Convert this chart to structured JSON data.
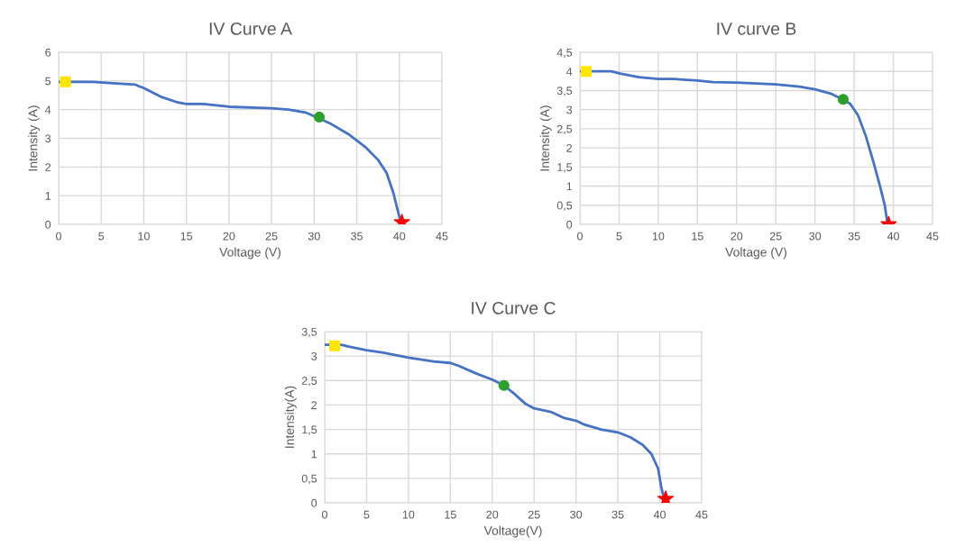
{
  "chart_data": [
    {
      "type": "line",
      "title": "IV Curve A",
      "xlabel": "Voltage (V)",
      "ylabel": "Intensity (A)",
      "xlim": [
        0,
        45
      ],
      "xticks": [
        0,
        5,
        10,
        15,
        20,
        25,
        30,
        35,
        40,
        45
      ],
      "ylim": [
        0,
        6
      ],
      "yticks": [
        0,
        1,
        2,
        3,
        4,
        5,
        6
      ],
      "grid": true,
      "series": [
        {
          "color": "#4472c4",
          "marker": "none",
          "x": [
            0,
            4,
            6,
            9,
            10,
            12,
            14,
            15,
            17,
            20,
            25,
            27,
            29,
            32,
            34,
            36,
            37.5,
            38.5,
            39.3,
            39.8,
            40.1
          ],
          "values": [
            4.97,
            4.97,
            4.93,
            4.87,
            4.75,
            4.45,
            4.25,
            4.2,
            4.2,
            4.1,
            4.05,
            4.0,
            3.9,
            3.5,
            3.15,
            2.7,
            2.25,
            1.8,
            1.1,
            0.5,
            0.15
          ]
        },
        {
          "type": "scatter",
          "color": "#ffe600",
          "marker": "square",
          "x": [
            0.8
          ],
          "values": [
            4.97
          ]
        },
        {
          "type": "scatter",
          "color": "#2ca02c",
          "marker": "circle",
          "x": [
            30.6
          ],
          "values": [
            3.74
          ]
        },
        {
          "type": "scatter",
          "color": "#ff0000",
          "marker": "star",
          "x": [
            40.3
          ],
          "values": [
            0.07
          ]
        }
      ]
    },
    {
      "type": "line",
      "title": "IV curve B",
      "xlabel": "Voltage (V)",
      "ylabel": "Intensity (A)",
      "xlim": [
        0,
        45
      ],
      "xticks": [
        0,
        5,
        10,
        15,
        20,
        25,
        30,
        35,
        40,
        45
      ],
      "ylim": [
        0,
        4.5
      ],
      "yticks": [
        0,
        {
          "value": 0.5,
          "label": "0,5"
        },
        1,
        {
          "value": 1.5,
          "label": "1,5"
        },
        2,
        {
          "value": 2.5,
          "label": "2,5"
        },
        3,
        {
          "value": 3.5,
          "label": "3,5"
        },
        4,
        {
          "value": 4.5,
          "label": "4,5"
        }
      ],
      "grid": true,
      "series": [
        {
          "color": "#4472c4",
          "marker": "none",
          "x": [
            0,
            4,
            5,
            7.5,
            10,
            12,
            15,
            17,
            20,
            25,
            28,
            30,
            32,
            33.5,
            34.5,
            35.5,
            36.5,
            37.5,
            38.3,
            38.9,
            39.2
          ],
          "values": [
            4.0,
            4.0,
            3.95,
            3.85,
            3.8,
            3.8,
            3.76,
            3.72,
            3.71,
            3.66,
            3.6,
            3.53,
            3.42,
            3.27,
            3.15,
            2.85,
            2.3,
            1.6,
            1.0,
            0.5,
            0.1
          ]
        },
        {
          "type": "scatter",
          "color": "#ffe600",
          "marker": "square",
          "x": [
            0.8
          ],
          "values": [
            4.0
          ]
        },
        {
          "type": "scatter",
          "color": "#2ca02c",
          "marker": "circle",
          "x": [
            33.6
          ],
          "values": [
            3.27
          ]
        },
        {
          "type": "scatter",
          "color": "#ff0000",
          "marker": "star",
          "x": [
            39.4
          ],
          "values": [
            0.0
          ]
        }
      ]
    },
    {
      "type": "line",
      "title": "IV Curve C",
      "xlabel": "Voltage(V)",
      "ylabel": "Intensity(A)",
      "xlim": [
        0,
        45
      ],
      "xticks": [
        0,
        5,
        10,
        15,
        20,
        25,
        30,
        35,
        40,
        45
      ],
      "ylim": [
        0,
        3.5
      ],
      "yticks": [
        0,
        {
          "value": 0.5,
          "label": "0,5"
        },
        1,
        {
          "value": 1.5,
          "label": "1,5"
        },
        2,
        {
          "value": 2.5,
          "label": "2,5"
        },
        3,
        {
          "value": 3.5,
          "label": "3,5"
        }
      ],
      "grid": true,
      "series": [
        {
          "color": "#4472c4",
          "marker": "none",
          "x": [
            0,
            2,
            3,
            5,
            7,
            10,
            13,
            15,
            16,
            18,
            20,
            21.4,
            22.5,
            24,
            25,
            27,
            28.5,
            30,
            31,
            33,
            35,
            36.5,
            38,
            39,
            39.8,
            40.2,
            40.5
          ],
          "values": [
            3.23,
            3.23,
            3.19,
            3.12,
            3.07,
            2.97,
            2.89,
            2.86,
            2.8,
            2.65,
            2.52,
            2.4,
            2.25,
            2.02,
            1.93,
            1.86,
            1.74,
            1.68,
            1.6,
            1.5,
            1.44,
            1.34,
            1.18,
            1.0,
            0.7,
            0.3,
            0.1
          ]
        },
        {
          "type": "scatter",
          "color": "#ffe600",
          "marker": "square",
          "x": [
            1.2
          ],
          "values": [
            3.21
          ]
        },
        {
          "type": "scatter",
          "color": "#2ca02c",
          "marker": "circle",
          "x": [
            21.4
          ],
          "values": [
            2.4
          ]
        },
        {
          "type": "scatter",
          "color": "#ff0000",
          "marker": "star",
          "x": [
            40.7
          ],
          "values": [
            0.08
          ]
        }
      ]
    }
  ]
}
